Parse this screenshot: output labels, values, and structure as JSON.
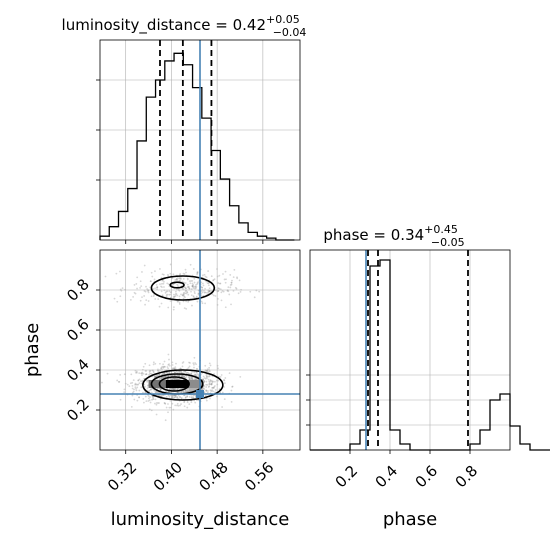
{
  "chart_data": [
    {
      "type": "histogram",
      "panel": "luminosity_distance marginal",
      "title_param": "luminosity_distance",
      "title_value": "0.42",
      "title_plus": "+0.05",
      "title_minus": "−0.04",
      "bin_start": 0.275,
      "bin_width": 0.0162,
      "counts": [
        0.02,
        0.07,
        0.15,
        0.27,
        0.52,
        0.75,
        0.84,
        0.94,
        0.98,
        0.92,
        0.8,
        0.64,
        0.47,
        0.32,
        0.18,
        0.09,
        0.04,
        0.02,
        0.01,
        0.0,
        0.0
      ],
      "xlim": [
        0.275,
        0.625
      ],
      "quantiles": [
        0.38,
        0.42,
        0.47
      ],
      "truth": 0.45
    },
    {
      "type": "histogram",
      "panel": "phase marginal",
      "title_param": "phase",
      "title_value": "0.34",
      "title_plus": "+0.45",
      "title_minus": "−0.05",
      "bin_start": 0.0,
      "bin_width": 0.05,
      "counts": [
        0.0,
        0.0,
        0.0,
        0.0,
        0.03,
        0.1,
        0.92,
        0.95,
        0.1,
        0.03,
        0.0,
        0.0,
        0.0,
        0.0,
        0.0,
        0.0,
        0.03,
        0.1,
        0.25,
        0.28,
        0.12,
        0.03,
        0.0,
        0.0
      ],
      "xlim": [
        0.0,
        1.0
      ],
      "quantiles": [
        0.29,
        0.34,
        0.79
      ],
      "truth": 0.28
    },
    {
      "type": "scatter",
      "panel": "2D: luminosity_distance vs phase",
      "x_param": "luminosity_distance",
      "y_param": "phase",
      "xlim": [
        0.275,
        0.625
      ],
      "ylim": [
        0.0,
        1.0
      ],
      "modes": [
        {
          "x": 0.41,
          "y": 0.33,
          "sx": 0.035,
          "sy": 0.045,
          "n": 1300
        },
        {
          "x": 0.42,
          "y": 0.81,
          "sx": 0.045,
          "sy": 0.045,
          "n": 380
        }
      ],
      "contours": [
        {
          "x": 0.42,
          "y": 0.325,
          "rx": 0.07,
          "ry": 0.075
        },
        {
          "x": 0.41,
          "y": 0.33,
          "rx": 0.045,
          "ry": 0.05
        },
        {
          "x": 0.405,
          "y": 0.33,
          "rx": 0.026,
          "ry": 0.035
        },
        {
          "x": 0.42,
          "y": 0.81,
          "rx": 0.055,
          "ry": 0.06
        },
        {
          "x": 0.41,
          "y": 0.825,
          "rx": 0.012,
          "ry": 0.014
        }
      ],
      "core_bins": [
        {
          "x0": 0.39,
          "x1": 0.43,
          "y0": 0.31,
          "y1": 0.35,
          "v": 1.0
        },
        {
          "x0": 0.36,
          "x1": 0.39,
          "y0": 0.31,
          "y1": 0.35,
          "v": 0.55
        },
        {
          "x0": 0.43,
          "x1": 0.455,
          "y0": 0.31,
          "y1": 0.35,
          "v": 0.45
        },
        {
          "x0": 0.43,
          "x1": 0.455,
          "y0": 0.275,
          "y1": 0.31,
          "v": 0.3
        }
      ],
      "truth": {
        "x": 0.45,
        "y": 0.28
      }
    }
  ],
  "axes": {
    "bottom_left_xlabel": "luminosity_distance",
    "bottom_right_xlabel": "phase",
    "left_ylabel": "phase",
    "ld_ticks": [
      {
        "v": 0.32,
        "label": "0.32"
      },
      {
        "v": 0.4,
        "label": "0.40"
      },
      {
        "v": 0.48,
        "label": "0.48"
      },
      {
        "v": 0.56,
        "label": "0.56"
      }
    ],
    "phase_ticks": [
      {
        "v": 0.2,
        "label": "0.2"
      },
      {
        "v": 0.4,
        "label": "0.4"
      },
      {
        "v": 0.6,
        "label": "0.6"
      },
      {
        "v": 0.8,
        "label": "0.8"
      }
    ]
  },
  "colors": {
    "truth": "#4682b4",
    "line": "#000000",
    "grid": "#b0b0b0",
    "spine": "#000000"
  },
  "grid": true
}
